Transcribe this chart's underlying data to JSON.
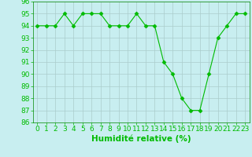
{
  "x": [
    0,
    1,
    2,
    3,
    4,
    5,
    6,
    7,
    8,
    9,
    10,
    11,
    12,
    13,
    14,
    15,
    16,
    17,
    18,
    19,
    20,
    21,
    22,
    23
  ],
  "y": [
    94,
    94,
    94,
    95,
    94,
    95,
    95,
    95,
    94,
    94,
    94,
    95,
    94,
    94,
    91,
    90,
    88,
    87,
    87,
    90,
    93,
    94,
    95,
    95
  ],
  "line_color": "#00bb00",
  "marker": "D",
  "marker_size": 2.5,
  "bg_color": "#c8eef0",
  "grid_color": "#aacccc",
  "xlabel": "Humidité relative (%)",
  "xlabel_color": "#00bb00",
  "ylim": [
    86,
    96
  ],
  "xlim": [
    -0.5,
    23.5
  ],
  "yticks": [
    86,
    87,
    88,
    89,
    90,
    91,
    92,
    93,
    94,
    95,
    96
  ],
  "xticks": [
    0,
    1,
    2,
    3,
    4,
    5,
    6,
    7,
    8,
    9,
    10,
    11,
    12,
    13,
    14,
    15,
    16,
    17,
    18,
    19,
    20,
    21,
    22,
    23
  ],
  "tick_fontsize": 6.5,
  "xlabel_fontsize": 7.5,
  "tick_color": "#00bb00"
}
